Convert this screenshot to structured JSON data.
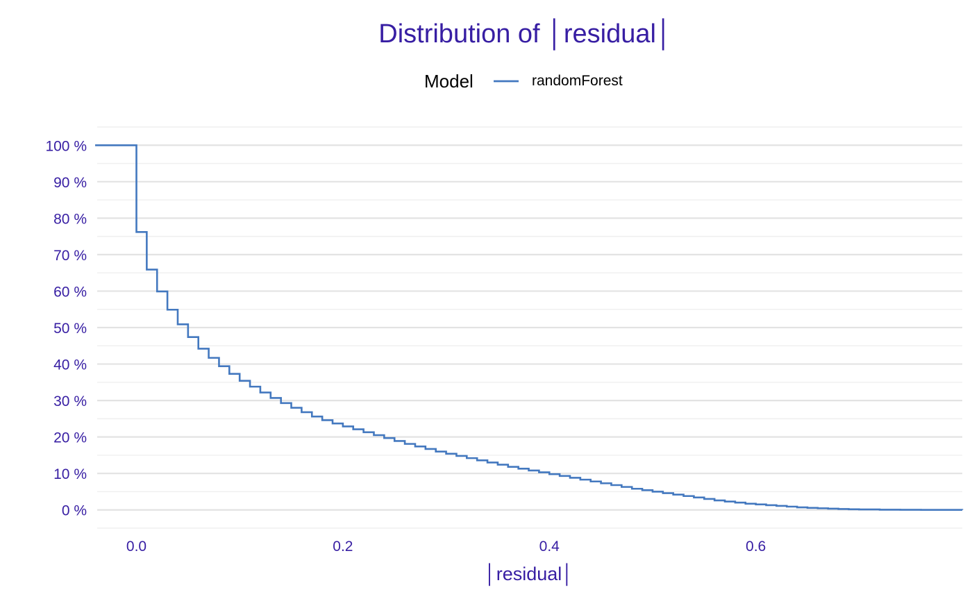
{
  "colors": {
    "title": "#371ea3",
    "tick_label": "#371ea3",
    "series": "#4378bf",
    "grid": "#e3e3e3"
  },
  "chart_data": {
    "type": "line",
    "title": "Distribution of │residual│",
    "xlabel": "│residual│",
    "ylabel": "",
    "xlim": [
      -0.038,
      0.8
    ],
    "ylim": [
      -0.05,
      1.05
    ],
    "x_ticks": [
      0.0,
      0.2,
      0.4,
      0.6
    ],
    "x_tick_labels": [
      "0.0",
      "0.2",
      "0.4",
      "0.6"
    ],
    "y_ticks": [
      0,
      0.1,
      0.2,
      0.3,
      0.4,
      0.5,
      0.6,
      0.7,
      0.8,
      0.9,
      1.0
    ],
    "y_tick_labels": [
      "0 %",
      "10 %",
      "20 %",
      "30 %",
      "40 %",
      "50 %",
      "60 %",
      "70 %",
      "80 %",
      "90 %",
      "100 %"
    ],
    "grid": true,
    "legend": {
      "title": "Model",
      "position": "top"
    },
    "series": [
      {
        "name": "randomForest",
        "step": true,
        "x": [
          -0.04,
          0.0,
          0.01,
          0.02,
          0.03,
          0.04,
          0.05,
          0.06,
          0.07,
          0.08,
          0.09,
          0.1,
          0.11,
          0.12,
          0.13,
          0.14,
          0.15,
          0.16,
          0.17,
          0.18,
          0.19,
          0.2,
          0.21,
          0.22,
          0.23,
          0.24,
          0.25,
          0.26,
          0.27,
          0.28,
          0.29,
          0.3,
          0.31,
          0.32,
          0.33,
          0.34,
          0.35,
          0.36,
          0.37,
          0.38,
          0.39,
          0.4,
          0.41,
          0.42,
          0.43,
          0.44,
          0.45,
          0.46,
          0.47,
          0.48,
          0.49,
          0.5,
          0.51,
          0.52,
          0.53,
          0.54,
          0.55,
          0.56,
          0.57,
          0.58,
          0.59,
          0.6,
          0.61,
          0.62,
          0.63,
          0.64,
          0.65,
          0.66,
          0.67,
          0.68,
          0.69,
          0.7,
          0.72,
          0.74,
          0.76,
          0.8
        ],
        "y": [
          1.0,
          0.762,
          0.659,
          0.599,
          0.549,
          0.509,
          0.474,
          0.442,
          0.417,
          0.394,
          0.373,
          0.354,
          0.338,
          0.322,
          0.307,
          0.293,
          0.28,
          0.268,
          0.256,
          0.246,
          0.237,
          0.229,
          0.221,
          0.213,
          0.205,
          0.197,
          0.189,
          0.181,
          0.174,
          0.167,
          0.16,
          0.154,
          0.148,
          0.142,
          0.136,
          0.13,
          0.124,
          0.118,
          0.113,
          0.108,
          0.103,
          0.098,
          0.093,
          0.088,
          0.083,
          0.078,
          0.073,
          0.068,
          0.063,
          0.058,
          0.054,
          0.05,
          0.046,
          0.042,
          0.038,
          0.034,
          0.03,
          0.026,
          0.023,
          0.02,
          0.017,
          0.015,
          0.013,
          0.011,
          0.009,
          0.007,
          0.0055,
          0.0045,
          0.0035,
          0.0025,
          0.0018,
          0.0012,
          0.0006,
          0.0003,
          0.0001,
          0.0
        ]
      }
    ]
  }
}
